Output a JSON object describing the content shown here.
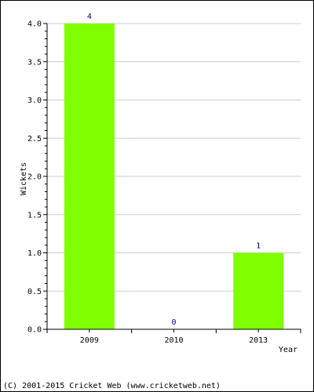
{
  "chart_data": {
    "type": "bar",
    "categories": [
      "2009",
      "2010",
      "2013"
    ],
    "values": [
      4,
      0,
      1
    ],
    "data_labels": [
      "4",
      "0",
      "1"
    ],
    "xlabel": "Year",
    "ylabel": "Wickets",
    "ylim": [
      0,
      4
    ],
    "yticks": [
      "0.0",
      "0.5",
      "1.0",
      "1.5",
      "2.0",
      "2.5",
      "3.0",
      "3.5",
      "4.0"
    ],
    "grid": true,
    "colors": {
      "bar": "#80ff00",
      "grid": "#cccccc",
      "label": "#000080"
    }
  },
  "footer": {
    "copyright": "(C) 2001-2015 Cricket Web (www.cricketweb.net)"
  }
}
